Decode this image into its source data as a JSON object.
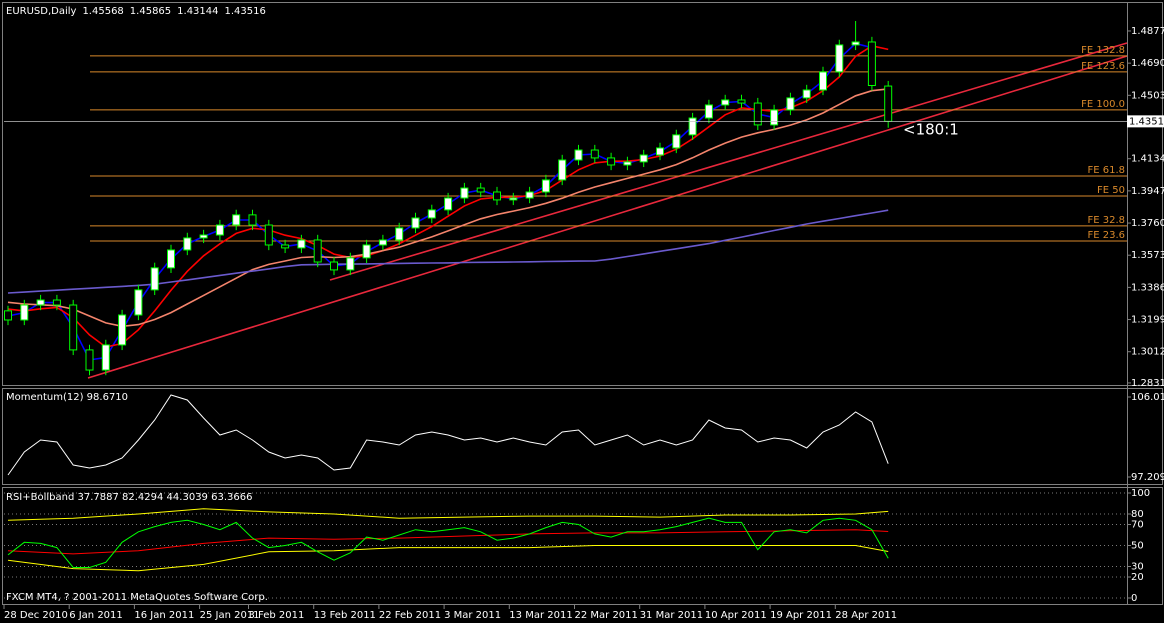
{
  "chart_data": [
    {
      "type": "candlestick",
      "symbol": "EURUSD,Daily",
      "categories": [
        "28 Dec 2010",
        null,
        null,
        null,
        "6 Jan 2011",
        null,
        null,
        null,
        "16 Jan 2011",
        null,
        null,
        null,
        "25 Jan 2011",
        null,
        null,
        "3 Feb 2011",
        null,
        null,
        null,
        "13 Feb 2011",
        null,
        null,
        null,
        "22 Feb 2011",
        null,
        null,
        null,
        "3 Mar 2011",
        null,
        null,
        null,
        "13 Mar 2011",
        null,
        null,
        null,
        "22 Mar 2011",
        null,
        null,
        null,
        "31 Mar 2011",
        null,
        null,
        null,
        "10 Apr 2011",
        null,
        null,
        null,
        "19 Apr 2011",
        null,
        null,
        null,
        "28 Apr 2011",
        null,
        null,
        null
      ],
      "candles": {
        "open": [
          1.325,
          1.3197,
          1.3284,
          1.3313,
          1.3284,
          1.3023,
          1.2906,
          1.3052,
          1.3226,
          1.3372,
          1.35,
          1.3604,
          1.3674,
          1.3691,
          1.3749,
          1.3808,
          1.3749,
          1.3633,
          1.3616,
          1.3662,
          1.3534,
          1.3488,
          1.3558,
          1.3633,
          1.3662,
          1.3732,
          1.379,
          1.3837,
          1.3906,
          1.3964,
          1.3941,
          1.3895,
          1.3906,
          1.3941,
          1.4011,
          1.4127,
          1.4185,
          1.4139,
          1.4098,
          1.4116,
          1.4156,
          1.4197,
          1.4273,
          1.4371,
          1.4447,
          1.4476,
          1.4458,
          1.4331,
          1.4418,
          1.4488,
          1.4534,
          1.4639,
          1.4796,
          1.4813,
          1.45568
        ],
        "high": [
          1.328,
          1.3314,
          1.3343,
          1.3343,
          1.3314,
          1.3053,
          1.3082,
          1.3256,
          1.3402,
          1.353,
          1.3634,
          1.3704,
          1.3721,
          1.3779,
          1.3838,
          1.3838,
          1.3779,
          1.3663,
          1.3692,
          1.3692,
          1.3564,
          1.3588,
          1.3663,
          1.3692,
          1.3762,
          1.382,
          1.3867,
          1.3936,
          1.3994,
          1.3994,
          1.3971,
          1.3936,
          1.3971,
          1.4041,
          1.4157,
          1.4215,
          1.4215,
          1.4169,
          1.4146,
          1.4186,
          1.4227,
          1.4303,
          1.4401,
          1.4477,
          1.4506,
          1.4506,
          1.4488,
          1.4448,
          1.4518,
          1.4564,
          1.4669,
          1.4826,
          1.4935,
          1.4843,
          1.45865
        ],
        "low": [
          1.3167,
          1.3167,
          1.3254,
          1.3254,
          1.2993,
          1.2876,
          1.2876,
          1.3022,
          1.3196,
          1.3342,
          1.347,
          1.3574,
          1.3644,
          1.3661,
          1.3719,
          1.3719,
          1.3603,
          1.3586,
          1.3586,
          1.3504,
          1.3458,
          1.3458,
          1.3528,
          1.3603,
          1.3632,
          1.3702,
          1.376,
          1.3807,
          1.3876,
          1.3911,
          1.3865,
          1.3865,
          1.3876,
          1.3911,
          1.3981,
          1.4097,
          1.4109,
          1.4068,
          1.4068,
          1.4086,
          1.4126,
          1.4167,
          1.4243,
          1.4341,
          1.4417,
          1.4428,
          1.4301,
          1.4301,
          1.4388,
          1.4458,
          1.4504,
          1.4609,
          1.4766,
          1.453,
          1.43144
        ],
        "close": [
          1.3197,
          1.3284,
          1.3313,
          1.3284,
          1.3023,
          1.2906,
          1.3052,
          1.3226,
          1.3372,
          1.35,
          1.3604,
          1.3674,
          1.3691,
          1.3749,
          1.3808,
          1.3749,
          1.3633,
          1.3616,
          1.3662,
          1.3534,
          1.3488,
          1.3558,
          1.3633,
          1.3662,
          1.3732,
          1.379,
          1.3837,
          1.3906,
          1.3964,
          1.3941,
          1.3895,
          1.3906,
          1.3941,
          1.4011,
          1.4127,
          1.4185,
          1.4139,
          1.4098,
          1.4116,
          1.4156,
          1.4197,
          1.4273,
          1.4371,
          1.4447,
          1.4476,
          1.4458,
          1.4331,
          1.4418,
          1.4488,
          1.4534,
          1.4639,
          1.4796,
          1.4813,
          1.456,
          1.43516
        ]
      },
      "up_color": "#ffffff",
      "down_color": "#000000",
      "wick_color": "#00ff00",
      "lines": [
        {
          "color": "#0000ff",
          "values": [
            1.322,
            1.324,
            1.3298,
            1.3298,
            1.3154,
            1.2965,
            1.2979,
            1.3139,
            1.3299,
            1.3436,
            1.3552,
            1.3639,
            1.3682,
            1.372,
            1.3778,
            1.3778,
            1.3691,
            1.3624,
            1.3639,
            1.3598,
            1.3511,
            1.3523,
            1.3595,
            1.3647,
            1.3697,
            1.3761,
            1.3813,
            1.3871,
            1.3935,
            1.3952,
            1.3918,
            1.39,
            1.3923,
            1.3976,
            1.4069,
            1.4156,
            1.4162,
            1.4118,
            1.4107,
            1.4136,
            1.4176,
            1.4235,
            1.4322,
            1.4409,
            1.4461,
            1.4467,
            1.4394,
            1.4374,
            1.4453,
            1.4511,
            1.4586,
            1.4717,
            1.4804,
            1.478,
            null
          ]
        },
        {
          "color": "#ff0000",
          "values": [
            1.326,
            1.325,
            1.3262,
            1.327,
            1.321,
            1.311,
            1.304,
            1.306,
            1.314,
            1.325,
            1.337,
            1.348,
            1.357,
            1.364,
            1.37,
            1.373,
            1.372,
            1.369,
            1.367,
            1.363,
            1.358,
            1.356,
            1.357,
            1.36,
            1.364,
            1.369,
            1.374,
            1.38,
            1.386,
            1.39,
            1.391,
            1.391,
            1.392,
            1.395,
            1.401,
            1.407,
            1.411,
            1.412,
            1.412,
            1.413,
            1.415,
            1.419,
            1.425,
            1.432,
            1.439,
            1.443,
            1.442,
            1.441,
            1.443,
            1.447,
            1.453,
            1.461,
            1.473,
            1.479,
            1.477
          ]
        },
        {
          "color": "#f4846c",
          "values": [
            1.33,
            1.329,
            1.3285,
            1.328,
            1.326,
            1.322,
            1.318,
            1.316,
            1.317,
            1.32,
            1.324,
            1.329,
            1.334,
            1.339,
            1.344,
            1.349,
            1.352,
            1.354,
            1.356,
            1.3565,
            1.356,
            1.3565,
            1.358,
            1.36,
            1.362,
            1.365,
            1.368,
            1.3715,
            1.375,
            1.3785,
            1.381,
            1.383,
            1.385,
            1.3875,
            1.3905,
            1.394,
            1.397,
            1.3995,
            1.402,
            1.4045,
            1.407,
            1.41,
            1.414,
            1.4185,
            1.4225,
            1.426,
            1.4285,
            1.4305,
            1.433,
            1.436,
            1.44,
            1.445,
            1.45,
            1.453,
            1.454
          ]
        },
        {
          "color": "#6a5acd",
          "values": [
            1.3354,
            1.3359,
            1.3365,
            1.337,
            1.3376,
            1.3381,
            1.3387,
            1.3392,
            1.3398,
            1.3405,
            1.3418,
            1.343,
            1.3443,
            1.3456,
            1.3469,
            1.3481,
            1.3494,
            1.3507,
            1.3518,
            1.3519,
            1.3521,
            1.3522,
            1.3523,
            1.3524,
            1.3526,
            1.3527,
            1.3528,
            1.3529,
            1.3531,
            1.3532,
            1.3533,
            1.3534,
            1.3535,
            1.3537,
            1.3538,
            1.3539,
            1.354,
            1.3551,
            1.3566,
            1.3581,
            1.3596,
            1.3611,
            1.3626,
            1.3641,
            1.366,
            1.3679,
            1.3698,
            1.3717,
            1.3736,
            1.3755,
            1.3771,
            1.3787,
            1.3803,
            1.3819,
            1.3835
          ]
        }
      ],
      "fe_color": "#d9892b",
      "fe_levels": [
        {
          "label": "FE 132.8",
          "value": 1.4732
        },
        {
          "label": "FE 123.6",
          "value": 1.4639
        },
        {
          "label": "FE 100.0",
          "value": 1.4418
        },
        {
          "label": "FE 61.8",
          "value": 1.4034
        },
        {
          "label": "FE 50",
          "value": 1.3918
        },
        {
          "label": "FE 32.8",
          "value": 1.3744
        },
        {
          "label": "FE 23.6",
          "value": 1.3656
        }
      ],
      "annotation": "<180:1",
      "ylim": [
        1.2819,
        1.5028
      ],
      "yticks": [
        {
          "value": 1.4877,
          "label": "1.48770"
        },
        {
          "value": 1.469,
          "label": "1.46900"
        },
        {
          "value": 1.4503,
          "label": "1.45030"
        },
        1.41345,
        1.39475,
        1.37605,
        1.35735,
        1.33865,
        1.31995,
        1.30125,
        {
          "value": 1.2831,
          "label": "1.28310"
        }
      ]
    },
    {
      "type": "line",
      "title": "Momentum(12) 98.6710",
      "color": "#ffffff",
      "values": [
        97.43,
        99.96,
        101.28,
        101.06,
        98.53,
        98.2,
        98.53,
        99.3,
        101.28,
        103.48,
        106.24,
        105.68,
        103.7,
        101.83,
        102.38,
        101.28,
        99.96,
        99.3,
        99.63,
        99.3,
        97.98,
        98.2,
        101.28,
        101.06,
        100.73,
        101.83,
        102.16,
        101.83,
        101.28,
        101.5,
        101.06,
        101.5,
        101.06,
        100.73,
        102.16,
        102.38,
        100.73,
        101.28,
        101.83,
        100.73,
        101.28,
        100.73,
        101.28,
        103.48,
        102.6,
        102.38,
        101.06,
        101.5,
        101.28,
        100.4,
        102.16,
        102.93,
        104.36,
        103.26,
        98.671
      ],
      "ylim": [
        96.329,
        107.006
      ],
      "yticks": [
        106.015,
        97.2096
      ]
    },
    {
      "type": "line",
      "title": "RSI+Bollband 37.7887 82.4294 44.3039 63.3666",
      "series": [
        {
          "color": "#ffff00",
          "x": [
            0,
            4,
            8,
            12,
            16,
            20,
            24,
            28,
            32,
            36,
            40,
            44,
            48,
            52,
            54
          ],
          "values": [
            74,
            76,
            80,
            85,
            82,
            80,
            76,
            77,
            78,
            78,
            77,
            79,
            79,
            80,
            82.4294
          ]
        },
        {
          "color": "#ff0000",
          "x": [
            0,
            4,
            8,
            12,
            16,
            20,
            24,
            28,
            32,
            36,
            40,
            44,
            48,
            52,
            54
          ],
          "values": [
            45,
            42,
            45,
            52,
            57,
            56,
            57,
            59,
            61,
            62,
            62,
            63,
            64,
            65,
            63.3666
          ]
        },
        {
          "color": "#ffff00",
          "x": [
            0,
            4,
            8,
            12,
            16,
            20,
            24,
            28,
            32,
            36,
            40,
            44,
            48,
            52,
            54
          ],
          "values": [
            36,
            28,
            26,
            32,
            44,
            45,
            48,
            48,
            48,
            50,
            50,
            50,
            50,
            50,
            44.3039
          ]
        },
        {
          "color": "#00ff00",
          "values": [
            41,
            53,
            52,
            48,
            29,
            29,
            34,
            53,
            63,
            68,
            72,
            74,
            70,
            65,
            72,
            57,
            48,
            50,
            53,
            44,
            36,
            43,
            58,
            55,
            60,
            65,
            63,
            65,
            67,
            63,
            55,
            57,
            61,
            67,
            72,
            70,
            61,
            58,
            63,
            63,
            65,
            68,
            72,
            76,
            72,
            72,
            46,
            63,
            65,
            62,
            74,
            76,
            74,
            65,
            37.7887
          ]
        }
      ],
      "ylim": [
        -6.67,
        104.76
      ],
      "yticks": [
        100,
        80,
        70,
        50,
        30,
        20,
        0
      ],
      "grid": true
    }
  ],
  "footer": "FXCM MT4, ? 2001-2011 MetaQuotes Software Corp."
}
